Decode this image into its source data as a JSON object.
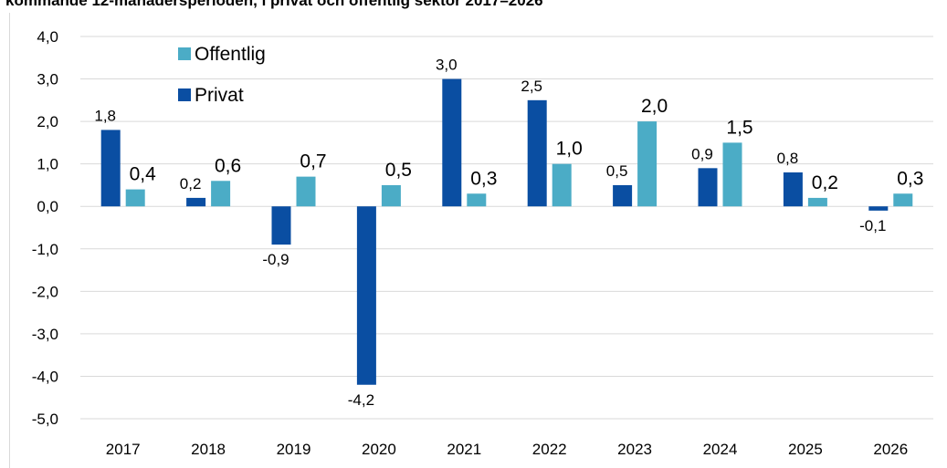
{
  "chart_data": {
    "type": "bar",
    "title": "kommande 12-månadersperioden, i privat och offentlig sektor 2017–2026",
    "categories": [
      "2017",
      "2018",
      "2019",
      "2020",
      "2021",
      "2022",
      "2023",
      "2024",
      "2025",
      "2026"
    ],
    "series": [
      {
        "name": "Offentlig",
        "color": "#4bacc6",
        "values": [
          0.4,
          0.6,
          0.7,
          0.5,
          0.3,
          1.0,
          2.0,
          1.5,
          0.2,
          0.3
        ],
        "value_labels": [
          "0,4",
          "0,6",
          "0,7",
          "0,5",
          "0,3",
          "1,0",
          "2,0",
          "1,5",
          "0,2",
          "0,3"
        ]
      },
      {
        "name": "Privat",
        "color": "#0a4ea2",
        "values": [
          1.8,
          0.2,
          -0.9,
          -4.2,
          3.0,
          2.5,
          0.5,
          0.9,
          0.8,
          -0.1
        ],
        "value_labels": [
          "1,8",
          "0,2",
          "-0,9",
          "-4,2",
          "3,0",
          "2,5",
          "0,5",
          "0,9",
          "0,8",
          "-0,1"
        ]
      }
    ],
    "ylim": [
      -5,
      4
    ],
    "yticks": [
      {
        "value": 4,
        "label": "4,0"
      },
      {
        "value": 3,
        "label": "3,0"
      },
      {
        "value": 2,
        "label": "2,0"
      },
      {
        "value": 1,
        "label": "1,0"
      },
      {
        "value": 0,
        "label": "0,0"
      },
      {
        "value": -1,
        "label": "-1,0"
      },
      {
        "value": -2,
        "label": "-2,0"
      },
      {
        "value": -3,
        "label": "-3,0"
      },
      {
        "value": -4,
        "label": "-4,0"
      },
      {
        "value": -5,
        "label": "-5,0"
      }
    ],
    "grid": true,
    "legend": "upper left"
  }
}
